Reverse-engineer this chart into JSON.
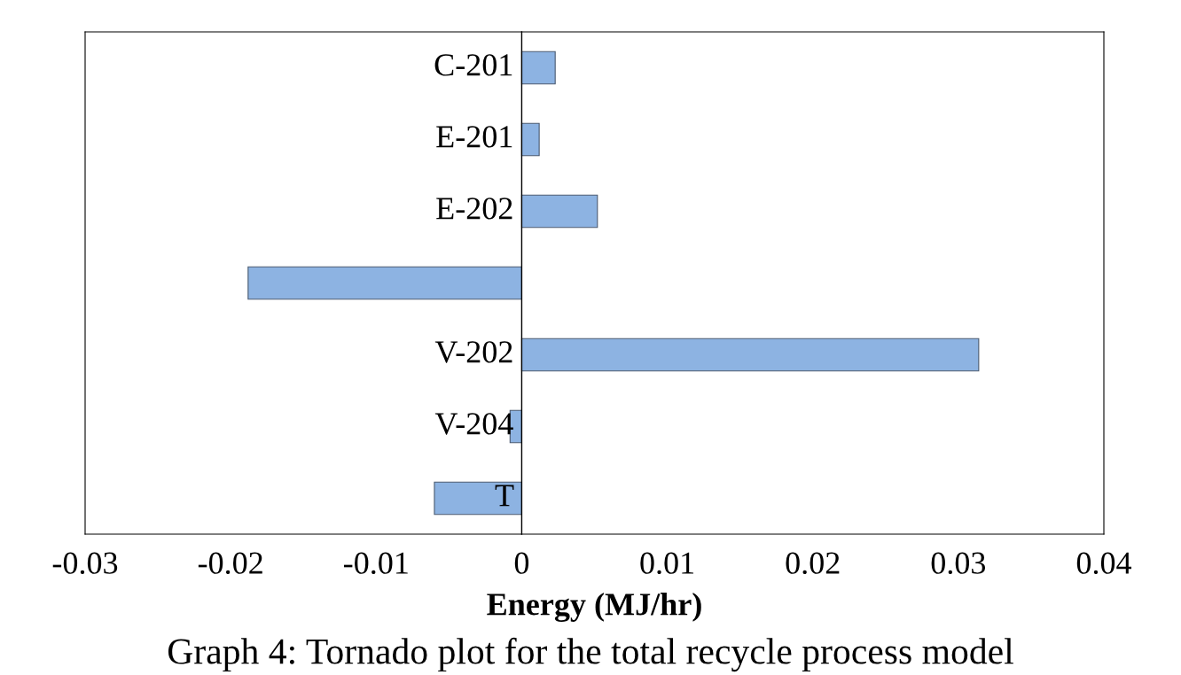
{
  "chart_data": {
    "type": "bar",
    "orientation": "horizontal",
    "xlabel": "Energy (MJ/hr)",
    "categories": [
      "C-201",
      "E-201",
      "E-202",
      null,
      "V-202",
      "V-204",
      "T"
    ],
    "values": [
      0.0023,
      0.0012,
      0.0052,
      -0.0188,
      0.0314,
      -0.0008,
      -0.006
    ],
    "color": "#8db3e2",
    "xlim": [
      -0.03,
      0.04
    ],
    "xticks": [
      -0.03,
      -0.02,
      -0.01,
      0,
      0.01,
      0.02,
      0.03,
      0.04
    ],
    "tick_labels": "x",
    "grid": false,
    "legend": false,
    "annotations": [
      "Graph 4: Tornado plot for the total recycle process model"
    ]
  }
}
